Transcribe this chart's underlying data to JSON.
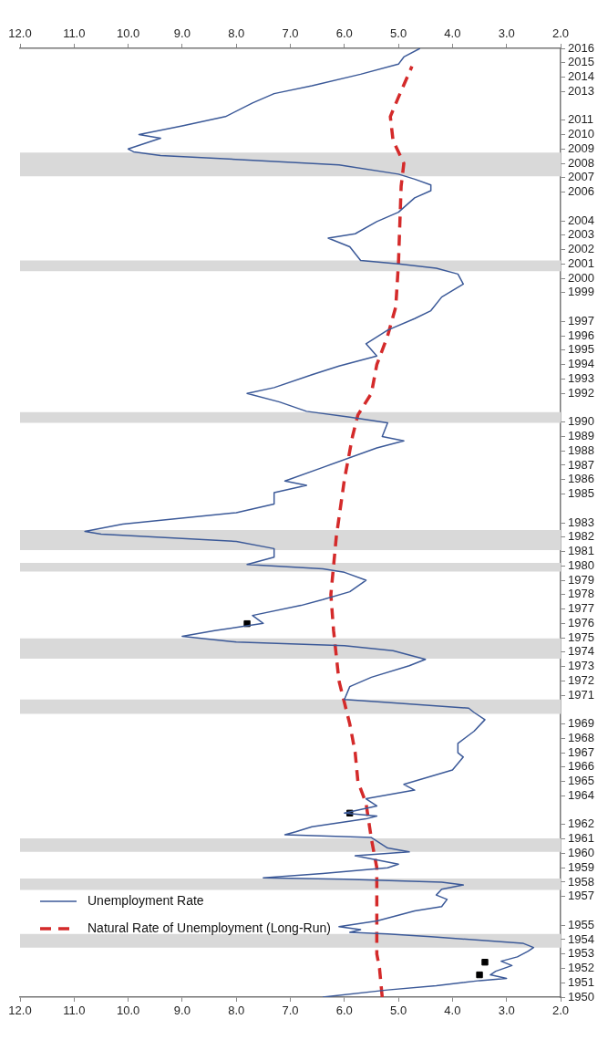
{
  "chart_data": {
    "type": "line",
    "xlim": [
      12,
      2
    ],
    "xticks": [
      {
        "value": 12,
        "label": "12.0"
      },
      {
        "value": 11,
        "label": "11.0"
      },
      {
        "value": 10,
        "label": "10.0"
      },
      {
        "value": 9,
        "label": "9.0"
      },
      {
        "value": 8,
        "label": "8.0"
      },
      {
        "value": 7,
        "label": "7.0"
      },
      {
        "value": 6,
        "label": "6.0"
      },
      {
        "value": 5,
        "label": "5.0"
      },
      {
        "value": 4,
        "label": "4.0"
      },
      {
        "value": 3,
        "label": "3.0"
      },
      {
        "value": 2,
        "label": "2.0"
      }
    ],
    "x2lim": [
      12,
      2
    ],
    "x2ticks": [
      {
        "value": 12,
        "label": "12.0"
      },
      {
        "value": 11,
        "label": "11.0"
      },
      {
        "value": 10,
        "label": "10.0"
      },
      {
        "value": 9,
        "label": "9.0"
      },
      {
        "value": 8,
        "label": "8.0"
      },
      {
        "value": 7,
        "label": "7.0"
      },
      {
        "value": 6,
        "label": "6.0"
      },
      {
        "value": 5,
        "label": "5.0"
      },
      {
        "value": 4,
        "label": "4.0"
      },
      {
        "value": 3,
        "label": "3.0"
      },
      {
        "value": 2,
        "label": "2.0"
      }
    ],
    "ylim": [
      1950,
      2016
    ],
    "yticks": [
      1950,
      1951,
      1952,
      1953,
      1954,
      1955,
      1957,
      1958,
      1959,
      1960,
      1961,
      1962,
      1964,
      1965,
      1966,
      1967,
      1968,
      1969,
      1971,
      1972,
      1973,
      1974,
      1975,
      1976,
      1977,
      1978,
      1979,
      1980,
      1981,
      1982,
      1983,
      1985,
      1986,
      1987,
      1988,
      1989,
      1990,
      1992,
      1993,
      1994,
      1995,
      1996,
      1997,
      1999,
      2000,
      2001,
      2002,
      2003,
      2004,
      2006,
      2007,
      2008,
      2009,
      2010,
      2011,
      2013,
      2014,
      2015,
      2016
    ],
    "grid": false,
    "legend": "bottom left",
    "bands": [
      {
        "axis": "y",
        "from": 1953.45,
        "to": 1954.4,
        "color": "#d9d9d9"
      },
      {
        "axis": "y",
        "from": 1957.45,
        "to": 1958.25,
        "color": "#d9d9d9"
      },
      {
        "axis": "y",
        "from": 1960.1,
        "to": 1961.05,
        "color": "#d9d9d9"
      },
      {
        "axis": "y",
        "from": 1969.7,
        "to": 1970.7,
        "color": "#d9d9d9"
      },
      {
        "axis": "y",
        "from": 1973.55,
        "to": 1974.95,
        "color": "#d9d9d9"
      },
      {
        "axis": "y",
        "from": 1979.6,
        "to": 1980.2,
        "color": "#d9d9d9"
      },
      {
        "axis": "y",
        "from": 1981.1,
        "to": 1982.5,
        "color": "#d9d9d9"
      },
      {
        "axis": "y",
        "from": 1989.95,
        "to": 1990.7,
        "color": "#d9d9d9"
      },
      {
        "axis": "y",
        "from": 2000.5,
        "to": 2001.25,
        "color": "#d9d9d9"
      },
      {
        "axis": "y",
        "from": 2007.1,
        "to": 2008.75,
        "color": "#d9d9d9"
      }
    ],
    "series": [
      {
        "name": "Unemployment Rate",
        "color": "#3b5998",
        "line_style": "solid",
        "marker": "none",
        "x": [
          6.4,
          5.2,
          4.3,
          3.5,
          3.0,
          3.3,
          3.2,
          2.9,
          3.1,
          2.8,
          2.6,
          2.5,
          2.7,
          4.4,
          5.2,
          5.9,
          5.7,
          6.1,
          5.4,
          4.7,
          4.2,
          4.1,
          4.3,
          4.2,
          3.8,
          4.2,
          6.0,
          7.5,
          6.4,
          5.2,
          5.0,
          5.8,
          4.8,
          5.2,
          5.5,
          7.1,
          6.9,
          6.6,
          5.6,
          5.4,
          6.0,
          5.4,
          5.6,
          4.7,
          4.9,
          4.0,
          3.8,
          3.9,
          3.9,
          3.6,
          3.4,
          3.6,
          3.7,
          5.2,
          6.0,
          5.9,
          5.5,
          4.8,
          4.5,
          5.1,
          6.0,
          8.0,
          9.0,
          8.4,
          7.5,
          7.7,
          6.8,
          6.4,
          5.9,
          5.6,
          6.0,
          6.4,
          7.8,
          7.3,
          7.3,
          8.0,
          10.5,
          10.8,
          10.1,
          8.0,
          7.3,
          7.3,
          6.7,
          7.1,
          6.4,
          5.4,
          4.9,
          5.3,
          5.2,
          5.9,
          6.7,
          7.2,
          7.8,
          7.3,
          6.6,
          6.1,
          5.4,
          5.6,
          5.2,
          4.7,
          4.4,
          4.2,
          3.8,
          3.9,
          4.3,
          5.0,
          5.7,
          5.9,
          6.3,
          5.8,
          5.4,
          5.0,
          4.7,
          4.4,
          4.4,
          4.7,
          5.0,
          6.1,
          9.4,
          9.9,
          10.0,
          9.4,
          9.8,
          9.0,
          8.2,
          7.7,
          7.3,
          6.6,
          5.7,
          5.0,
          4.9,
          4.6
        ],
        "values": [
          1950,
          1950.5,
          1950.8,
          1951.15,
          1951.3,
          1951.55,
          1951.8,
          1952.2,
          1952.5,
          1952.8,
          1953.2,
          1953.45,
          1953.75,
          1954.2,
          1954.4,
          1954.5,
          1954.7,
          1954.9,
          1955.3,
          1956,
          1956.3,
          1956.8,
          1957.1,
          1957.5,
          1957.8,
          1958,
          1958.2,
          1958.3,
          1958.6,
          1959,
          1959.25,
          1959.83,
          1960.1,
          1960.37,
          1961.1,
          1961.3,
          1961.5,
          1961.85,
          1962.4,
          1962.6,
          1962.8,
          1963.3,
          1963.8,
          1964.4,
          1964.8,
          1965.8,
          1966.7,
          1967,
          1967.65,
          1968.5,
          1969.3,
          1969.8,
          1970.1,
          1970.5,
          1970.7,
          1971.6,
          1972.25,
          1973.05,
          1973.5,
          1974.1,
          1974.45,
          1974.7,
          1975.1,
          1975.5,
          1976,
          1976.55,
          1977.25,
          1977.65,
          1978.2,
          1979,
          1979.55,
          1979.8,
          1980.1,
          1980.6,
          1981.2,
          1981.7,
          1982.2,
          1982.4,
          1982.9,
          1983.7,
          1984.3,
          1985.1,
          1985.6,
          1985.9,
          1986.85,
          1988.2,
          1988.7,
          1989,
          1989.95,
          1990.35,
          1990.75,
          1991.4,
          1992,
          1992.4,
          1993.3,
          1993.9,
          1994.6,
          1995.45,
          1996.4,
          1997.2,
          1997.75,
          1998.7,
          1999.6,
          2000.3,
          2000.7,
          2001,
          2001.25,
          2002.2,
          2002.8,
          2003.1,
          2003.95,
          2004.6,
          2005.6,
          2006.1,
          2006.5,
          2006.9,
          2007.25,
          2007.9,
          2008.55,
          2008.8,
          2009,
          2009.75,
          2010,
          2010.6,
          2011.25,
          2012.2,
          2012.85,
          2013.4,
          2014.2,
          2014.9,
          2015.4,
          2016
        ]
      },
      {
        "name": "Natural Rate of Unemployment (Long-Run)",
        "color": "#d42a2a",
        "line_style": "dashed",
        "marker": "none",
        "x": [
          5.3,
          5.35,
          5.4,
          5.4,
          5.5,
          5.6,
          5.75,
          5.8,
          5.9,
          6.1,
          6.2,
          6.25,
          6.2,
          6.15,
          6.0,
          5.85,
          5.75,
          5.5,
          5.4,
          5.2,
          5.05,
          5.0,
          4.95,
          4.9,
          5.1,
          5.15,
          5.0,
          4.75
        ],
        "values": [
          1950,
          1952,
          1953,
          1959,
          1961,
          1963.5,
          1965,
          1967,
          1969,
          1972,
          1975.5,
          1978,
          1980,
          1982,
          1986,
          1989,
          1990.5,
          1992,
          1994,
          1996,
          1998,
          2001,
          2006.4,
          2008,
          2009.6,
          2011.25,
          2012.6,
          2014.75
        ]
      },
      {
        "type": "scatter",
        "color": "#000000",
        "marker": "square",
        "x": [
          3.5,
          3.4,
          5.9,
          7.8
        ],
        "values": [
          1951.55,
          1952.43,
          1962.8,
          1975.98
        ]
      }
    ]
  }
}
